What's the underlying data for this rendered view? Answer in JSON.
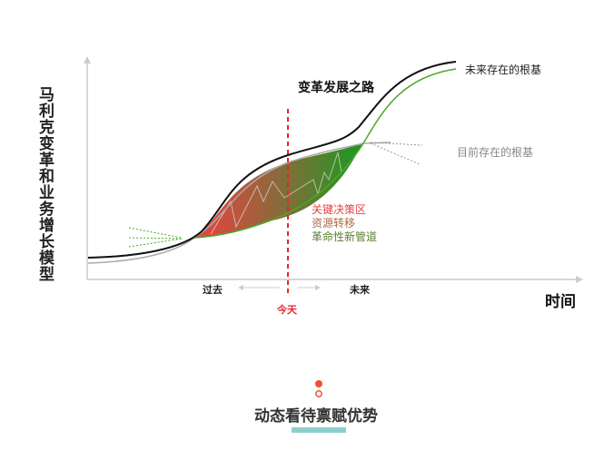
{
  "title": "变革发展之路",
  "y_axis_label": "马利克变革和业务增长模型",
  "x_axis_label": "时间",
  "curves": {
    "future": "未来存在的根基",
    "current": "目前存在的根基"
  },
  "zone_labels": [
    "关键决策区",
    "资源转移",
    "革命性新管道"
  ],
  "time_labels": {
    "past": "过去",
    "future": "未来",
    "today": "今天"
  },
  "caption": "动态看待禀赋优势",
  "colors": {
    "red": "#e8242a",
    "green": "#4aa82a",
    "teal": "#8ecfcd",
    "zone_text": [
      "#e84040",
      "#b06a40",
      "#5a8030"
    ]
  }
}
